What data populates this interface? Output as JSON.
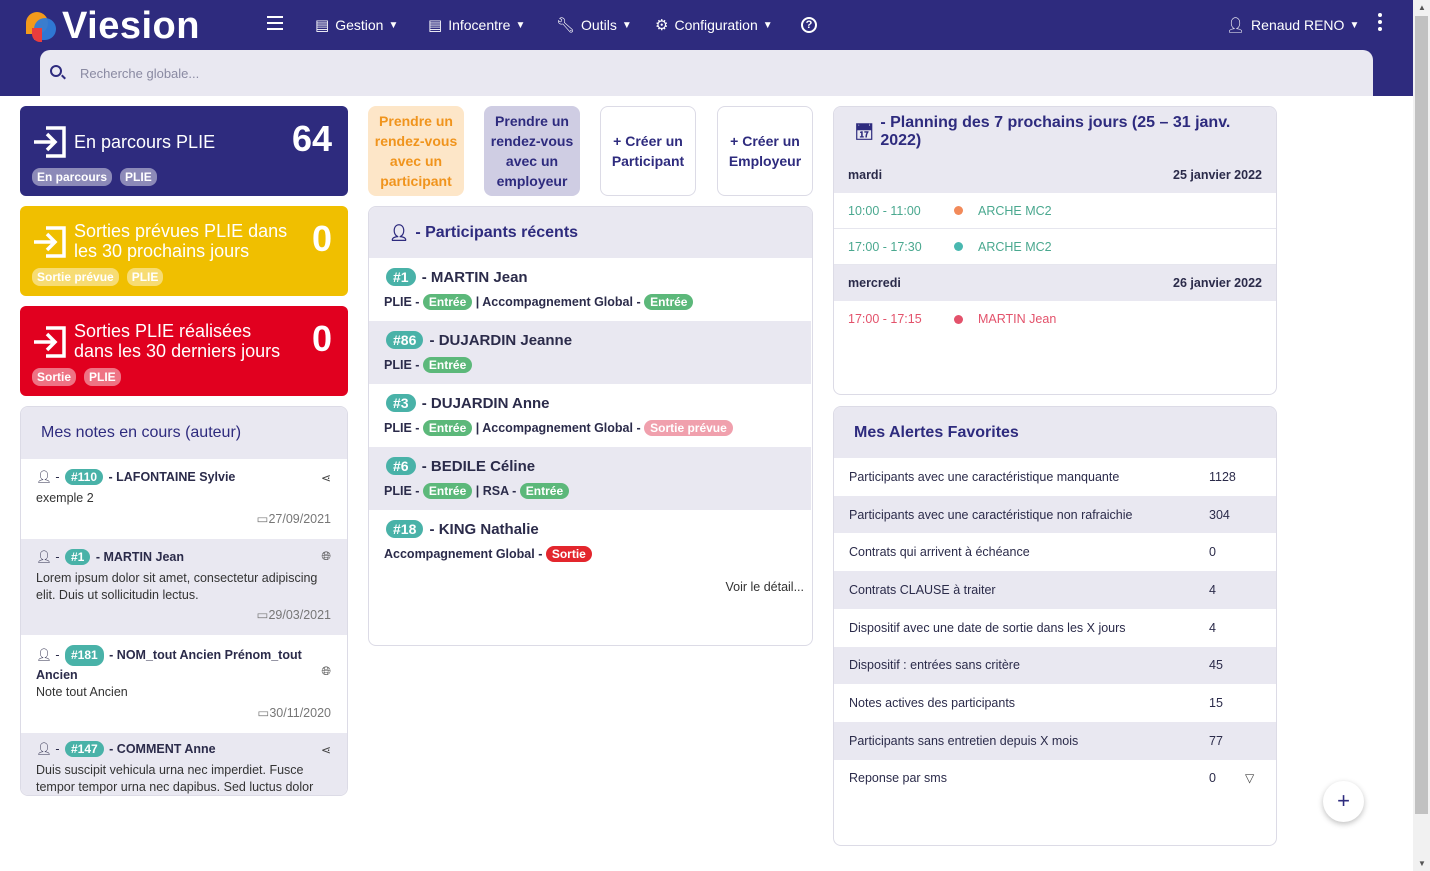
{
  "app": {
    "name": "Viesion"
  },
  "nav": [
    {
      "label": "Gestion",
      "icon": "table-icon"
    },
    {
      "label": "Infocentre",
      "icon": "table-icon"
    },
    {
      "label": "Outils",
      "icon": "wrench-icon"
    },
    {
      "label": "Configuration",
      "icon": "gear-icon"
    }
  ],
  "user": {
    "name": "Renaud RENO"
  },
  "search": {
    "placeholder": "Recherche globale..."
  },
  "stats": [
    {
      "title": "En parcours PLIE",
      "count": "64",
      "badges": [
        "En parcours",
        "PLIE"
      ],
      "color": "#2e2b7e"
    },
    {
      "title": "Sorties prévues PLIE dans les 30 prochains jours",
      "count": "0",
      "badges": [
        "Sortie prévue",
        "PLIE"
      ],
      "color": "#f0bf00"
    },
    {
      "title": "Sorties PLIE réalisées dans les 30 derniers jours",
      "count": "0",
      "badges": [
        "Sortie",
        "PLIE"
      ],
      "color": "#e1001f"
    }
  ],
  "notes": {
    "title": "Mes notes en cours (auteur)",
    "items": [
      {
        "id": "#110",
        "name": "LAFONTAINE Sylvie",
        "text": "exemple 2",
        "date": "27/09/2021",
        "icon": "share-icon"
      },
      {
        "id": "#1",
        "name": "MARTIN Jean",
        "text": "Lorem ipsum dolor sit amet, consectetur adipiscing elit. Duis ut sollicitudin lectus.",
        "date": "29/03/2021",
        "icon": "globe-icon"
      },
      {
        "id": "#181",
        "name": "NOM_tout Ancien Prénom_tout",
        "name2": "Ancien",
        "text": "Note tout Ancien",
        "date": "30/11/2020",
        "icon": "globe-icon"
      },
      {
        "id": "#147",
        "name": "COMMENT Anne",
        "text": "Duis suscipit vehicula urna nec imperdiet. Fusce tempor tempor urna nec dapibus. Sed luctus dolor",
        "icon": "share-icon"
      }
    ]
  },
  "actions": [
    {
      "label1": "Prendre un",
      "label2": "rendez-vous",
      "label3": "avec un",
      "label4": "participant",
      "bg": "#fde6c8",
      "fg": "#f0941d"
    },
    {
      "label1": "Prendre un",
      "label2": "rendez-vous",
      "label3": "avec un",
      "label4": "employeur",
      "bg": "#cfcde3",
      "fg": "#2e2b7e"
    },
    {
      "label1": "+ Créer un",
      "label2": "Participant",
      "bg": "#ffffff",
      "fg": "#2e2b7e"
    },
    {
      "label1": "+ Créer un",
      "label2": "Employeur",
      "bg": "#ffffff",
      "fg": "#2e2b7e"
    }
  ],
  "participants": {
    "title": "- Participants récents",
    "items": [
      {
        "id": "#1",
        "name": "- MARTIN Jean",
        "meta": [
          {
            "t": "PLIE -"
          },
          {
            "tag": "Entrée",
            "k": "entree"
          },
          {
            "t": "| Accompagnement Global -"
          },
          {
            "tag": "Entrée",
            "k": "entree"
          }
        ]
      },
      {
        "id": "#86",
        "name": "- DUJARDIN Jeanne",
        "meta": [
          {
            "t": "PLIE -"
          },
          {
            "tag": "Entrée",
            "k": "entree"
          }
        ]
      },
      {
        "id": "#3",
        "name": "- DUJARDIN Anne",
        "meta": [
          {
            "t": "PLIE -"
          },
          {
            "tag": "Entrée",
            "k": "entree"
          },
          {
            "t": "| Accompagnement Global -"
          },
          {
            "tag": "Sortie prévue",
            "k": "prevue"
          }
        ]
      },
      {
        "id": "#6",
        "name": "- BEDILE Céline",
        "meta": [
          {
            "t": "PLIE -"
          },
          {
            "tag": "Entrée",
            "k": "entree"
          },
          {
            "t": "| RSA -"
          },
          {
            "tag": "Entrée",
            "k": "entree"
          }
        ]
      },
      {
        "id": "#18",
        "name": "- KING Nathalie",
        "meta": [
          {
            "t": "Accompagnement Global -"
          },
          {
            "tag": "Sortie",
            "k": "sortie"
          }
        ]
      }
    ],
    "more": "Voir le détail..."
  },
  "planning": {
    "title": "- Planning des 7 prochains jours (25 – 31 janv. 2022)",
    "days": [
      {
        "day": "mardi",
        "date": "25 janvier 2022",
        "events": [
          {
            "time": "10:00 - 11:00",
            "label": "ARCHE MC2",
            "color": "#f28a5a",
            "text": "#4aa88f"
          },
          {
            "time": "17:00 - 17:30",
            "label": "ARCHE MC2",
            "color": "#49b8b0",
            "text": "#4aa88f"
          }
        ]
      },
      {
        "day": "mercredi",
        "date": "26 janvier 2022",
        "events": [
          {
            "time": "17:00 - 17:15",
            "label": "MARTIN Jean",
            "color": "#e3526b",
            "text": "#e3526b"
          }
        ]
      }
    ]
  },
  "alerts": {
    "title": "Mes Alertes Favorites",
    "items": [
      {
        "name": "Participants avec une caractéristique manquante",
        "count": "1128"
      },
      {
        "name": "Participants avec une caractéristique non rafraichie",
        "count": "304"
      },
      {
        "name": "Contrats qui arrivent à échéance",
        "count": "0"
      },
      {
        "name": "Contrats CLAUSE à traiter",
        "count": "4"
      },
      {
        "name": "Dispositif avec une date de sortie dans les X jours",
        "count": "4"
      },
      {
        "name": "Dispositif : entrées sans critère",
        "count": "45"
      },
      {
        "name": "Notes actives des participants",
        "count": "15"
      },
      {
        "name": "Participants sans entretien depuis X mois",
        "count": "77"
      },
      {
        "name": "Reponse par sms",
        "count": "0"
      }
    ]
  }
}
